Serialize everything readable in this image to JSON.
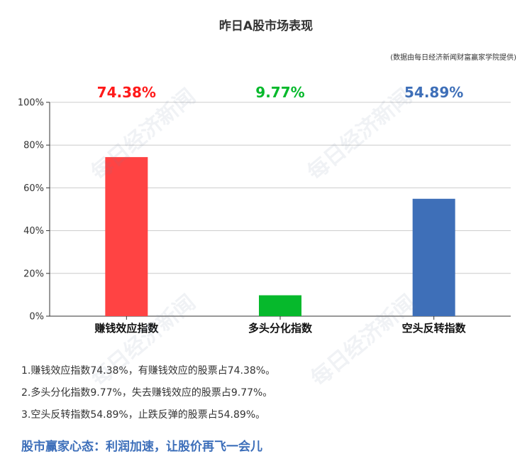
{
  "title": "昨日A股市场表现",
  "source_note": "(数据由每日经济新闻财富赢家学院提供)",
  "watermark": "每日经济新闻",
  "chart_data": {
    "type": "bar",
    "categories": [
      "赚钱效应指数",
      "多头分化指数",
      "空头反转指数"
    ],
    "values": [
      74.38,
      9.77,
      54.89
    ],
    "value_labels": [
      "74.38%",
      "9.77%",
      "54.89%"
    ],
    "colors": [
      "#ff4343",
      "#06b92c",
      "#3e6fb8"
    ],
    "label_colors": [
      "#ff1a1a",
      "#06b92c",
      "#3e6fb8"
    ],
    "yticks": [
      "0%",
      "20%",
      "40%",
      "60%",
      "80%",
      "100%"
    ],
    "ylim": [
      0,
      100
    ],
    "grid": true,
    "title": "昨日A股市场表现",
    "xlabel": "",
    "ylabel": ""
  },
  "notes": [
    "1.赚钱效应指数74.38%，有赚钱效应的股票占74.38%。",
    "2.多头分化指数9.77%，失去赚钱效应的股票占9.77%。",
    "3.空头反转指数54.89%，止跌反弹的股票占54.89%。"
  ],
  "slogan": "股市赢家心态：利润加速，让股价再飞一会儿"
}
